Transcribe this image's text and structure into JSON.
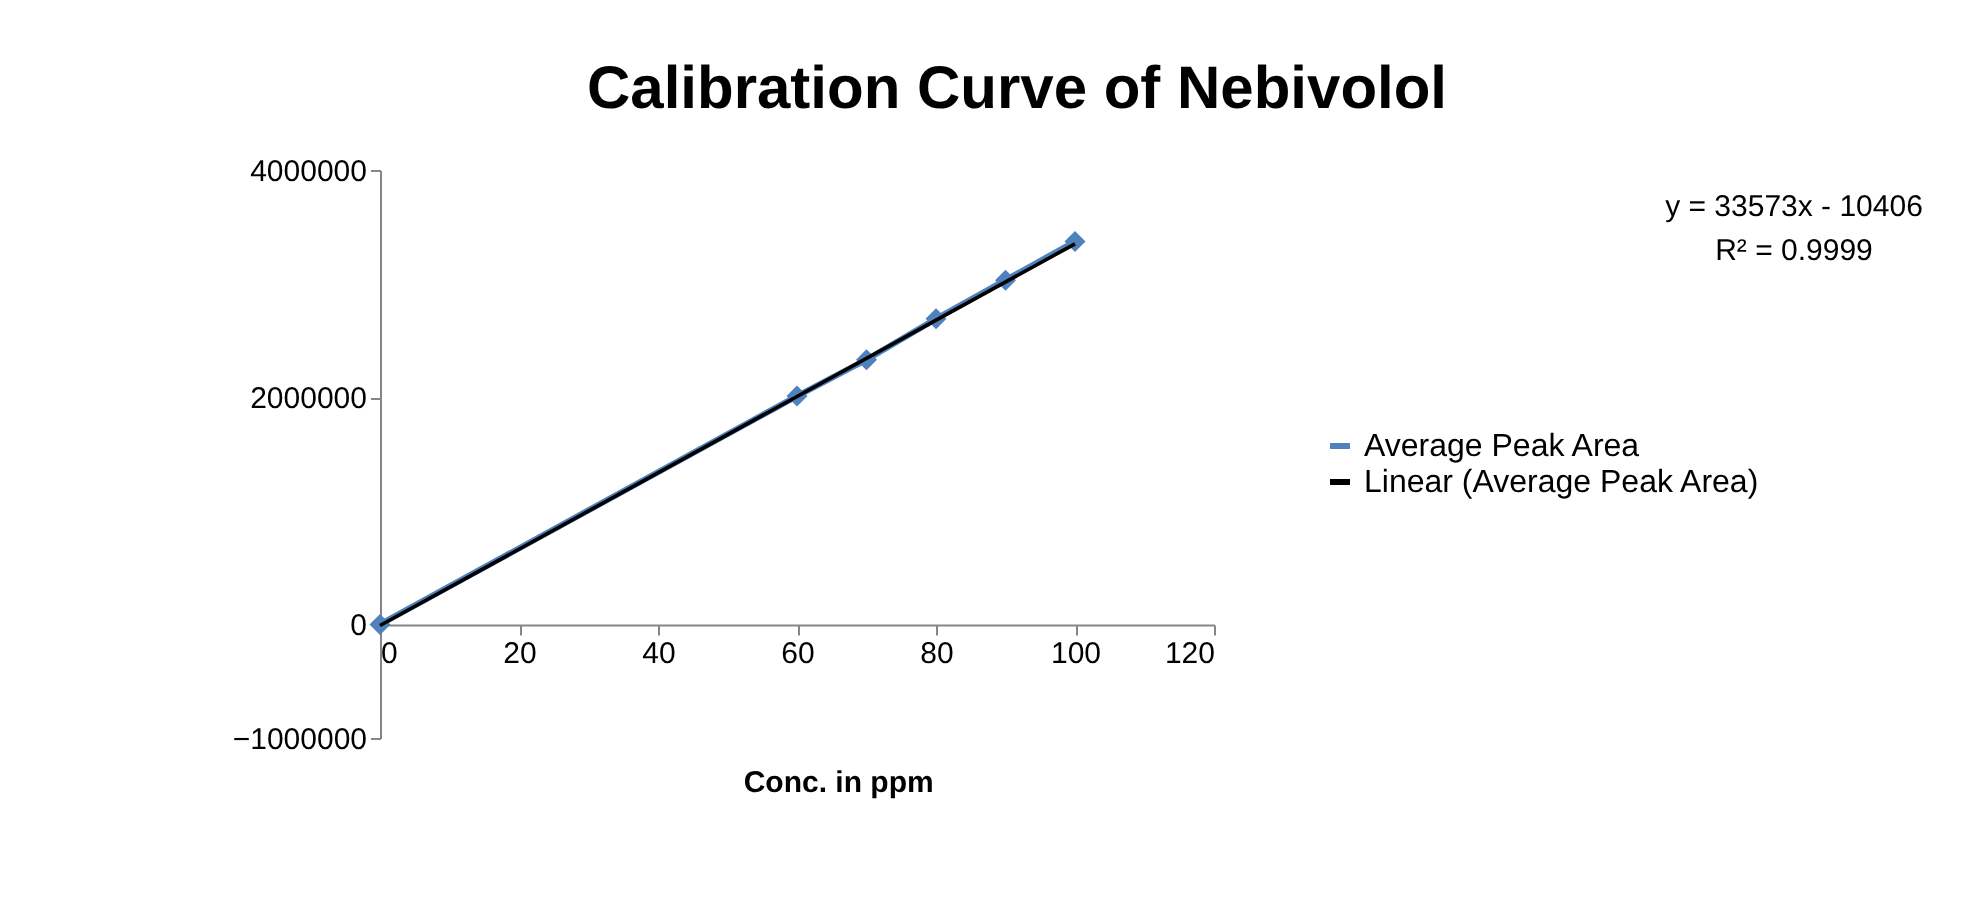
{
  "chart_data": {
    "type": "line",
    "title": "Calibration Curve of Nebivolol",
    "xlabel": "Conc. in ppm",
    "xlim": [
      0,
      120
    ],
    "xticks": [
      0,
      20,
      40,
      60,
      80,
      100,
      120
    ],
    "ylim": [
      -1000000,
      4000000
    ],
    "yticks": [
      -1000000,
      0,
      2000000,
      4000000
    ],
    "grid": false,
    "legend": "right",
    "series": [
      {
        "name": "Average  Peak Area",
        "color": "#4f81bd",
        "marker": "diamond",
        "x": [
          0,
          60,
          70,
          80,
          90,
          100
        ],
        "values": [
          0,
          2010000,
          2330000,
          2690000,
          3030000,
          3370000
        ]
      },
      {
        "name": "Linear (Average Peak Area)",
        "color": "#000000",
        "marker": "none",
        "x": [
          0,
          100
        ],
        "values": [
          -10000,
          3350000
        ]
      }
    ],
    "annotations": [
      "y = 33573x - 10406",
      "R² = 0.9999"
    ]
  }
}
